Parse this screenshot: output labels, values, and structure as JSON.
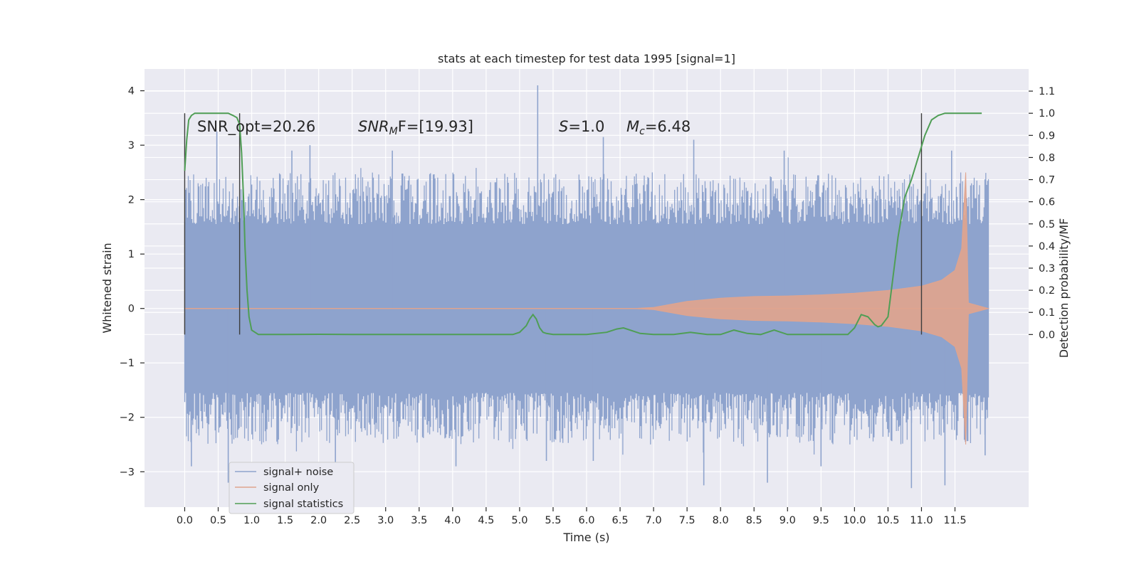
{
  "chart_data": {
    "type": "line",
    "title": "stats at each timestep for test data 1995 [signal=1]",
    "xlabel": "Time (s)",
    "ylabel_left": "Whitened strain",
    "ylabel_right": "Detection probability/MF",
    "xlim": [
      -0.6,
      12.6
    ],
    "ylim_left": [
      -3.65,
      4.4
    ],
    "ylim_right": [
      -0.78,
      1.2
    ],
    "xticks": [
      0.0,
      0.5,
      1.0,
      1.5,
      2.0,
      2.5,
      3.0,
      3.5,
      4.0,
      4.5,
      5.0,
      5.5,
      6.0,
      6.5,
      7.0,
      7.5,
      8.0,
      8.5,
      9.0,
      9.5,
      10.0,
      10.5,
      11.0,
      11.5
    ],
    "xtick_labels": [
      "0.0",
      "0.5",
      "1.0",
      "1.5",
      "2.0",
      "2.5",
      "3.0",
      "3.5",
      "4.0",
      "4.5",
      "5.0",
      "5.5",
      "6.0",
      "6.5",
      "7.0",
      "7.5",
      "8.0",
      "8.5",
      "9.0",
      "9.5",
      "10.0",
      "10.5",
      "11.0",
      "11.5"
    ],
    "yticks_left": [
      -3,
      -2,
      -1,
      0,
      1,
      2,
      3,
      4
    ],
    "ytick_labels_left": [
      "−3",
      "−2",
      "−1",
      "0",
      "1",
      "2",
      "3",
      "4"
    ],
    "yticks_right": [
      0.0,
      0.1,
      0.2,
      0.3,
      0.4,
      0.5,
      0.6,
      0.7,
      0.8,
      0.9,
      1.0,
      1.1
    ],
    "ytick_labels_right": [
      "0.0",
      "0.1",
      "0.2",
      "0.3",
      "0.4",
      "0.5",
      "0.6",
      "0.7",
      "0.8",
      "0.9",
      "1.0",
      "1.1"
    ],
    "grid": true,
    "legend_position": "lower-left",
    "annotations": {
      "snr_opt": "SNR_opt=20.26",
      "snr_mf_symbol": "SNR",
      "snr_mf_sub": "M",
      "snr_mf_rest": "F=[19.93]",
      "s_symbol": "S",
      "s_rest": "=1.0",
      "mc_symbol": "M",
      "mc_sub": "c",
      "mc_rest": "=6.48"
    },
    "vertical_lines": [
      0.0,
      0.82,
      11.0
    ],
    "series": [
      {
        "name": "signal+ noise",
        "color": "#8ea3cd",
        "axis": "left",
        "x_range": [
          0.0,
          12.0
        ],
        "band": 1.55,
        "peak_envelope": 2.5,
        "outliers": [
          [
            5.27,
            4.1
          ],
          [
            0.48,
            3.25
          ],
          [
            1.87,
            3.0
          ],
          [
            1.6,
            2.9
          ],
          [
            3.1,
            2.9
          ],
          [
            6.25,
            3.15
          ],
          [
            7.6,
            3.1
          ],
          [
            8.95,
            2.9
          ],
          [
            11.45,
            2.9
          ],
          [
            0.65,
            -3.2
          ],
          [
            7.75,
            -3.25
          ],
          [
            8.7,
            -3.2
          ],
          [
            10.85,
            -3.3
          ],
          [
            11.35,
            -3.25
          ],
          [
            4.05,
            -2.9
          ],
          [
            5.4,
            -2.8
          ],
          [
            0.1,
            -2.9
          ],
          [
            2.25,
            -2.95
          ],
          [
            6.1,
            -2.8
          ],
          [
            9.5,
            -2.9
          ],
          [
            11.95,
            -2.7
          ]
        ]
      },
      {
        "name": "signal only",
        "color": "#e0a48e",
        "axis": "left",
        "x_range": [
          0.0,
          12.0
        ],
        "envelope": [
          [
            0.0,
            0.0
          ],
          [
            6.7,
            0.0
          ],
          [
            7.0,
            0.02
          ],
          [
            7.5,
            0.13
          ],
          [
            8.0,
            0.19
          ],
          [
            8.5,
            0.22
          ],
          [
            9.0,
            0.23
          ],
          [
            9.5,
            0.25
          ],
          [
            10.0,
            0.28
          ],
          [
            10.5,
            0.33
          ],
          [
            11.0,
            0.41
          ],
          [
            11.3,
            0.52
          ],
          [
            11.5,
            0.7
          ],
          [
            11.6,
            1.1
          ],
          [
            11.66,
            2.5
          ],
          [
            11.7,
            0.1
          ],
          [
            12.0,
            0.0
          ]
        ]
      },
      {
        "name": "signal statistics",
        "color": "#4f9e55",
        "axis": "right",
        "x": [
          0.0,
          0.03,
          0.06,
          0.1,
          0.15,
          0.25,
          0.4,
          0.55,
          0.65,
          0.72,
          0.78,
          0.82,
          0.85,
          0.88,
          0.9,
          0.93,
          0.96,
          1.0,
          1.1,
          1.5,
          2.0,
          2.5,
          3.0,
          3.5,
          4.0,
          4.5,
          4.9,
          5.0,
          5.1,
          5.15,
          5.2,
          5.25,
          5.3,
          5.35,
          5.4,
          5.5,
          5.7,
          6.0,
          6.3,
          6.45,
          6.55,
          6.7,
          6.8,
          7.0,
          7.3,
          7.55,
          7.8,
          8.0,
          8.2,
          8.4,
          8.6,
          8.8,
          9.0,
          9.3,
          9.6,
          9.9,
          10.0,
          10.1,
          10.2,
          10.3,
          10.35,
          10.4,
          10.45,
          10.5,
          10.55,
          10.65,
          10.75,
          10.85,
          10.95,
          11.05,
          11.15,
          11.25,
          11.35,
          11.5,
          11.7,
          11.9
        ],
        "y": [
          0.74,
          0.88,
          0.97,
          0.99,
          1.0,
          1.0,
          1.0,
          1.0,
          1.0,
          0.99,
          0.98,
          0.95,
          0.82,
          0.6,
          0.4,
          0.2,
          0.08,
          0.02,
          0.0,
          0.0,
          0.001,
          0.0,
          0.0,
          0.0,
          0.0,
          0.0,
          0.0,
          0.01,
          0.04,
          0.07,
          0.09,
          0.07,
          0.03,
          0.01,
          0.005,
          0.0,
          0.0,
          0.0,
          0.01,
          0.025,
          0.03,
          0.015,
          0.005,
          0.0,
          0.0,
          0.01,
          0.0,
          0.0,
          0.02,
          0.005,
          0.0,
          0.02,
          0.0,
          0.0,
          0.0,
          0.0,
          0.03,
          0.09,
          0.08,
          0.045,
          0.035,
          0.04,
          0.06,
          0.08,
          0.2,
          0.44,
          0.62,
          0.7,
          0.8,
          0.9,
          0.97,
          0.99,
          1.0,
          1.0,
          1.0,
          1.0
        ]
      }
    ]
  }
}
